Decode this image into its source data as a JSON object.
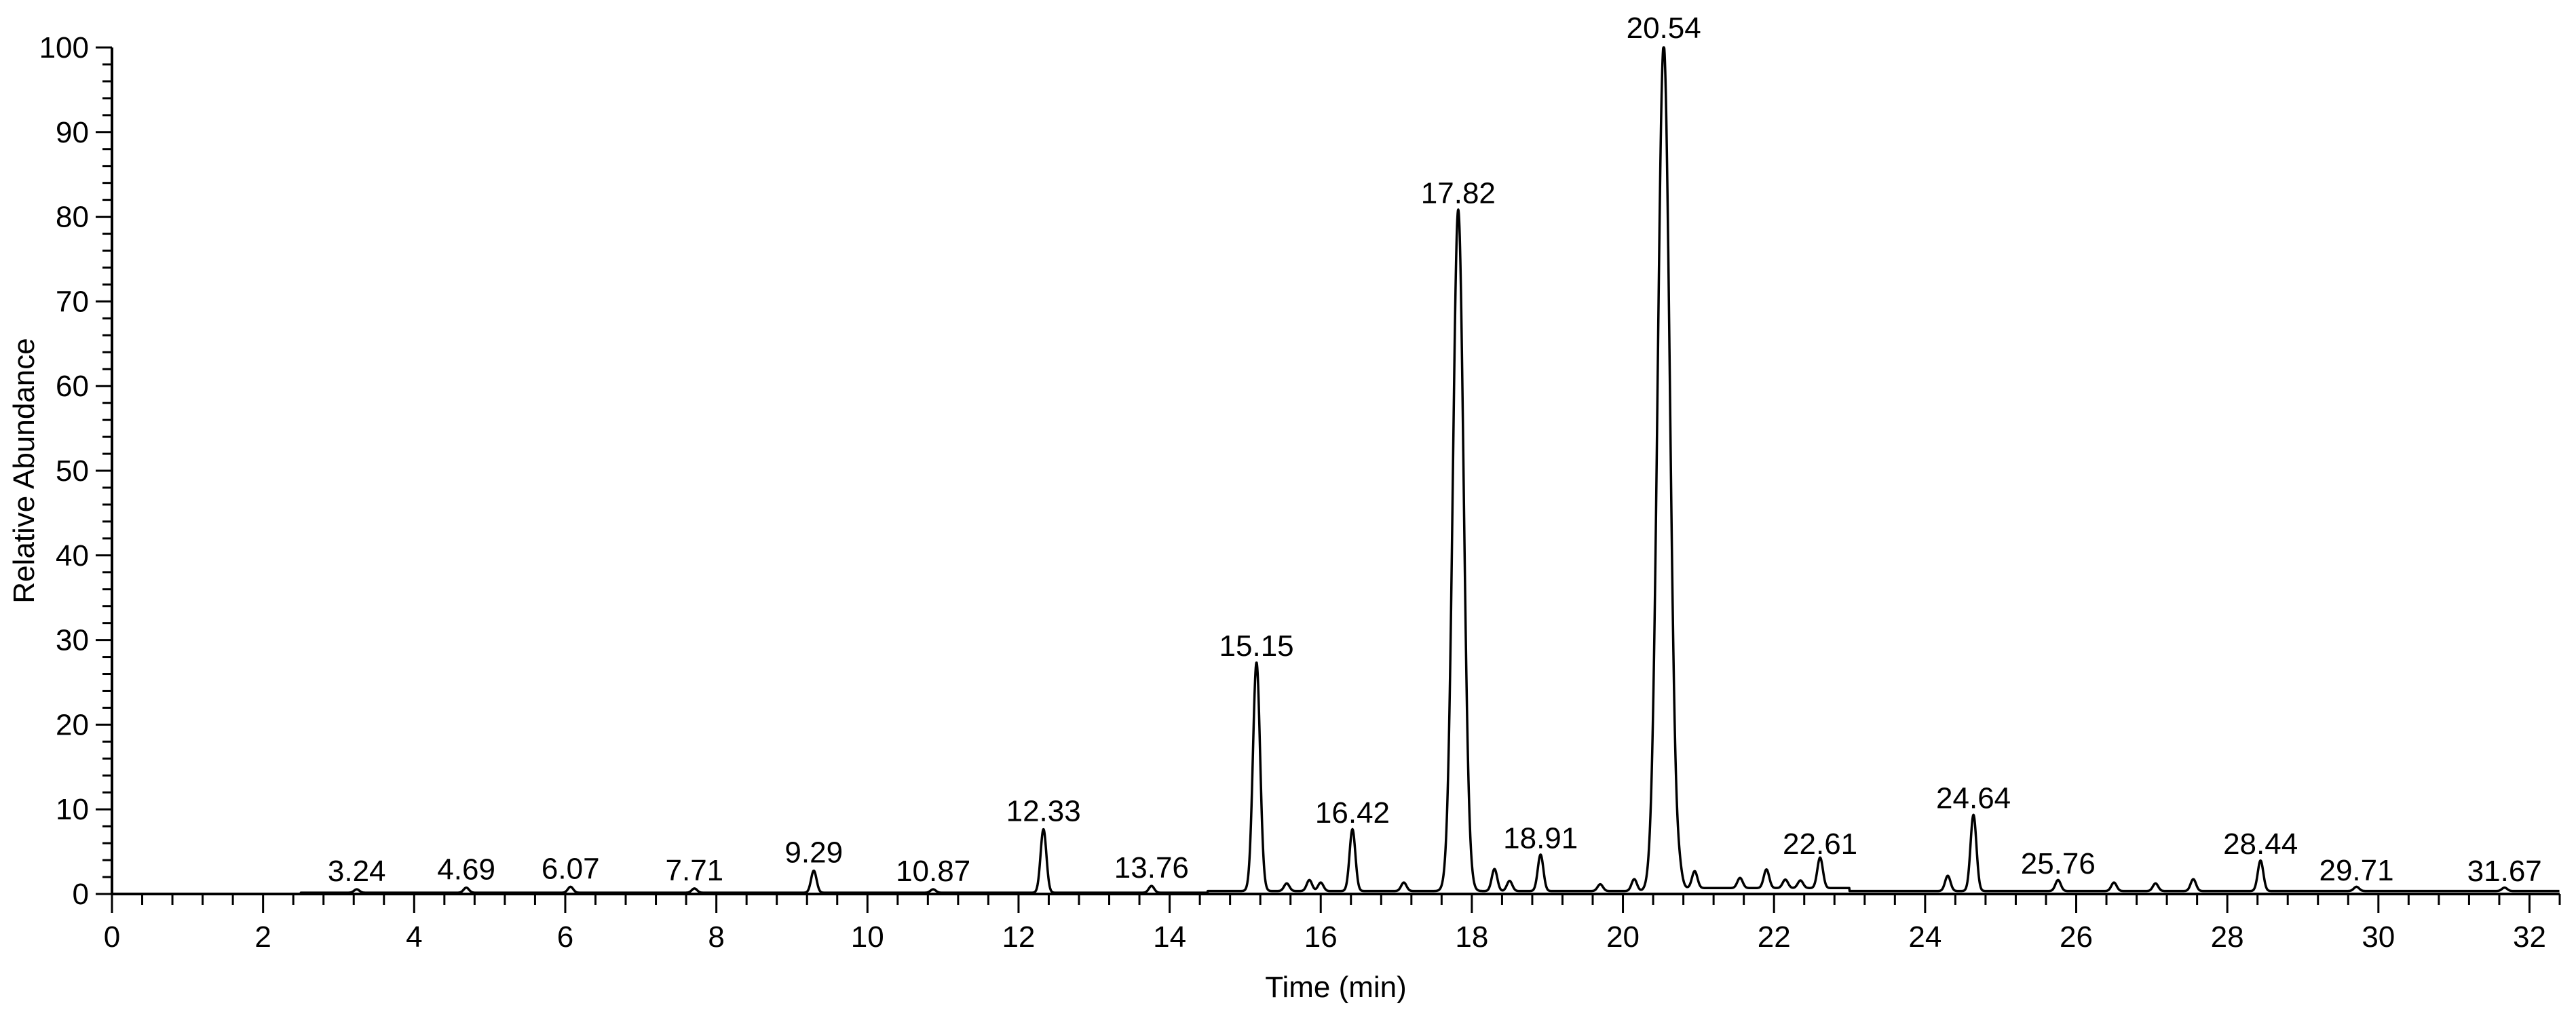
{
  "chart_data": {
    "type": "line",
    "xlabel": "Time (min)",
    "ylabel": "Relative Abundance",
    "xlim": [
      0,
      32.4
    ],
    "ylim": [
      0,
      100
    ],
    "x_ticks": [
      "0",
      "2",
      "4",
      "6",
      "8",
      "10",
      "12",
      "14",
      "16",
      "18",
      "20",
      "22",
      "24",
      "26",
      "28",
      "30",
      "32"
    ],
    "y_ticks": [
      "0",
      "10",
      "20",
      "30",
      "40",
      "50",
      "60",
      "70",
      "80",
      "90",
      "100"
    ],
    "grid": false,
    "peaks": [
      {
        "rt": 3.24,
        "label": "3.24",
        "height": 0.4
      },
      {
        "rt": 4.69,
        "label": "4.69",
        "height": 0.6
      },
      {
        "rt": 6.07,
        "label": "6.07",
        "height": 0.7
      },
      {
        "rt": 7.71,
        "label": "7.71",
        "height": 0.5
      },
      {
        "rt": 9.29,
        "label": "9.29",
        "height": 2.6
      },
      {
        "rt": 10.87,
        "label": "10.87",
        "height": 0.4
      },
      {
        "rt": 12.33,
        "label": "12.33",
        "height": 7.5
      },
      {
        "rt": 13.76,
        "label": "13.76",
        "height": 0.8
      },
      {
        "rt": 15.15,
        "label": "15.15",
        "height": 27.0
      },
      {
        "rt": 16.42,
        "label": "16.42",
        "height": 7.3
      },
      {
        "rt": 17.82,
        "label": "17.82",
        "height": 80.5
      },
      {
        "rt": 18.91,
        "label": "18.91",
        "height": 4.3
      },
      {
        "rt": 20.54,
        "label": "20.54",
        "height": 100.0
      },
      {
        "rt": 22.61,
        "label": "22.61",
        "height": 3.6
      },
      {
        "rt": 24.64,
        "label": "24.64",
        "height": 9.0
      },
      {
        "rt": 25.76,
        "label": "25.76",
        "height": 1.3
      },
      {
        "rt": 28.44,
        "label": "28.44",
        "height": 3.6
      },
      {
        "rt": 29.71,
        "label": "29.71",
        "height": 0.5
      },
      {
        "rt": 31.67,
        "label": "31.67",
        "height": 0.4
      }
    ],
    "minor_peaks": [
      {
        "rt": 15.55,
        "height": 0.9
      },
      {
        "rt": 15.85,
        "height": 1.3
      },
      {
        "rt": 16.0,
        "height": 1.0
      },
      {
        "rt": 17.1,
        "height": 1.0
      },
      {
        "rt": 18.3,
        "height": 2.6
      },
      {
        "rt": 18.5,
        "height": 1.2
      },
      {
        "rt": 19.7,
        "height": 0.8
      },
      {
        "rt": 20.15,
        "height": 1.4
      },
      {
        "rt": 20.75,
        "height": 1.2
      },
      {
        "rt": 20.95,
        "height": 2.0
      },
      {
        "rt": 21.55,
        "height": 1.2
      },
      {
        "rt": 21.9,
        "height": 2.2
      },
      {
        "rt": 22.15,
        "height": 1.0
      },
      {
        "rt": 22.35,
        "height": 0.9
      },
      {
        "rt": 24.3,
        "height": 1.8
      },
      {
        "rt": 26.5,
        "height": 1.0
      },
      {
        "rt": 27.05,
        "height": 0.9
      },
      {
        "rt": 27.55,
        "height": 1.4
      }
    ]
  }
}
